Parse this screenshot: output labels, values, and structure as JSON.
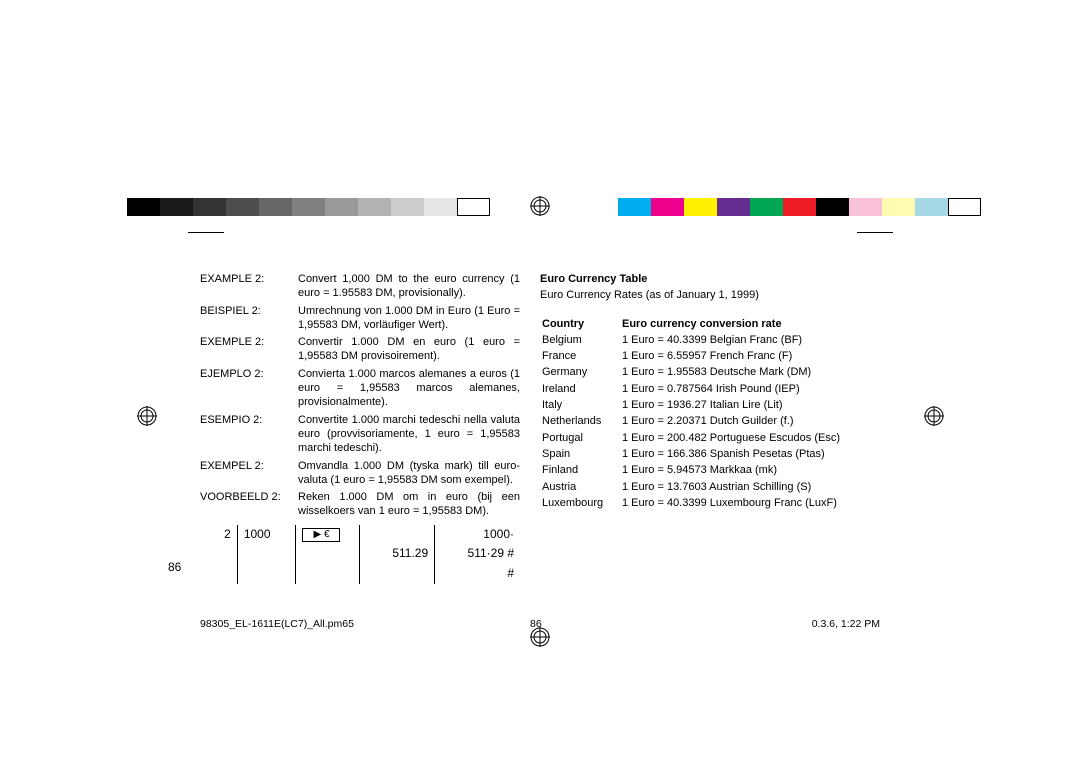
{
  "printerBars": {
    "gray": [
      "#000000",
      "#1a1a1a",
      "#333333",
      "#4d4d4d",
      "#666666",
      "#808080",
      "#999999",
      "#b3b3b3",
      "#cccccc",
      "#e6e6e6",
      "#ffffff"
    ],
    "grayBorders": [
      false,
      false,
      false,
      false,
      false,
      false,
      false,
      false,
      false,
      false,
      true
    ],
    "color": [
      "#00aeef",
      "#ec008c",
      "#fff200",
      "#662d91",
      "#00a651",
      "#ed1c24",
      "#000000",
      "#f8c1d8",
      "#fffbaf",
      "#a6d8e7",
      "#ffffff"
    ],
    "colorBorders": [
      false,
      false,
      false,
      false,
      false,
      false,
      false,
      false,
      false,
      false,
      true
    ]
  },
  "examples": [
    {
      "label": "EXAMPLE 2:",
      "text": "Convert 1,000 DM to the euro currency (1 euro = 1.95583 DM, provisionally)."
    },
    {
      "label": "BEISPIEL 2:",
      "text": "Umrechnung von 1.000 DM in Euro (1 Euro = 1,95583 DM, vorläufiger Wert)."
    },
    {
      "label": "EXEMPLE 2:",
      "text": "Convertir 1.000 DM en euro (1 euro = 1,95583 DM provisoirement)."
    },
    {
      "label": "EJEMPLO 2:",
      "text": "Convierta 1.000 marcos alemanes a euros (1 euro = 1,95583 marcos alemanes, provisionalmente)."
    },
    {
      "label": "ESEMPIO 2:",
      "text": "Convertite 1.000 marchi tedeschi nella valuta euro (provvisoriamente, 1 euro = 1,95583 marchi tedeschi)."
    },
    {
      "label": "EXEMPEL 2:",
      "text": "Omvandla 1.000 DM (tyska mark) till euro-valuta (1 euro = 1,95583 DM som exempel)."
    },
    {
      "label": "VOORBEELD 2:",
      "text": "Reken 1.000 DM om in euro (bij een wisselkoers van 1 euro = 1,95583 DM)."
    }
  ],
  "calc": {
    "rows": [
      [
        "2",
        "1000",
        "[▶€]",
        "",
        "1000·"
      ],
      [
        "",
        "",
        "",
        "511.29",
        "511·29  #"
      ],
      [
        "",
        "",
        "",
        "",
        "#"
      ]
    ]
  },
  "rightCol": {
    "title": "Euro Currency Table",
    "sub": "Euro Currency Rates (as of January 1, 1999)",
    "head": {
      "c": "Country",
      "r": "Euro currency conversion rate"
    },
    "rows": [
      {
        "c": "Belgium",
        "r": "1 Euro = 40.3399 Belgian Franc (BF)"
      },
      {
        "c": "France",
        "r": "1 Euro = 6.55957 French Franc (F)"
      },
      {
        "c": "Germany",
        "r": "1 Euro = 1.95583 Deutsche Mark (DM)"
      },
      {
        "c": "Ireland",
        "r": "1 Euro = 0.787564 Irish Pound (IEP)"
      },
      {
        "c": "Italy",
        "r": "1 Euro = 1936.27 Italian Lire (Lit)"
      },
      {
        "c": "Netherlands",
        "r": "1 Euro = 2.20371 Dutch Guilder (f.)"
      },
      {
        "c": "Portugal",
        "r": "1 Euro = 200.482 Portuguese Escudos (Esc)"
      },
      {
        "c": "Spain",
        "r": "1 Euro = 166.386 Spanish Pesetas (Ptas)"
      },
      {
        "c": "Finland",
        "r": "1 Euro = 5.94573 Markkaa (mk)"
      },
      {
        "c": "Austria",
        "r": "1 Euro = 13.7603 Austrian Schilling (S)"
      },
      {
        "c": "Luxembourg",
        "r": "1 Euro = 40.3399 Luxembourg Franc (LuxF)"
      }
    ]
  },
  "pageNumber": "86",
  "footer": {
    "file": "98305_EL-1611E(LC7)_All.pm65",
    "pg": "86",
    "ts": "0.3.6, 1:22 PM"
  }
}
